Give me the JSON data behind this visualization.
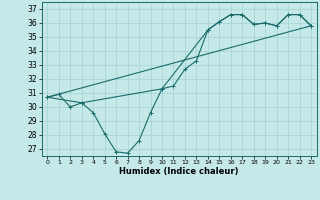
{
  "xlabel": "Humidex (Indice chaleur)",
  "bg_color": "#c5e8e8",
  "grid_color": "#aad4d4",
  "line_color": "#1a6b6b",
  "xlim": [
    -0.5,
    23.5
  ],
  "ylim": [
    26.5,
    37.5
  ],
  "xticks": [
    0,
    1,
    2,
    3,
    4,
    5,
    6,
    7,
    8,
    9,
    10,
    11,
    12,
    13,
    14,
    15,
    16,
    17,
    18,
    19,
    20,
    21,
    22,
    23
  ],
  "yticks": [
    27,
    28,
    29,
    30,
    31,
    32,
    33,
    34,
    35,
    36,
    37
  ],
  "line1_x": [
    0,
    1,
    2,
    3,
    4,
    5,
    6,
    7,
    8,
    9,
    10,
    11,
    12,
    13,
    14,
    15,
    16,
    17,
    18,
    19,
    20,
    21,
    22,
    23
  ],
  "line1_y": [
    30.7,
    30.9,
    30.0,
    30.3,
    29.6,
    28.1,
    26.8,
    26.7,
    27.6,
    29.6,
    31.3,
    31.5,
    32.7,
    33.3,
    35.5,
    36.1,
    36.6,
    36.6,
    35.9,
    36.0,
    35.8,
    36.6,
    36.6,
    35.8
  ],
  "line2_x": [
    0,
    23
  ],
  "line2_y": [
    30.7,
    35.8
  ],
  "line3_x": [
    0,
    3,
    10,
    14,
    15,
    16,
    17,
    18,
    19,
    20,
    21,
    22,
    23
  ],
  "line3_y": [
    30.7,
    30.3,
    31.3,
    35.5,
    36.1,
    36.6,
    36.6,
    35.9,
    36.0,
    35.8,
    36.6,
    36.6,
    35.8
  ]
}
